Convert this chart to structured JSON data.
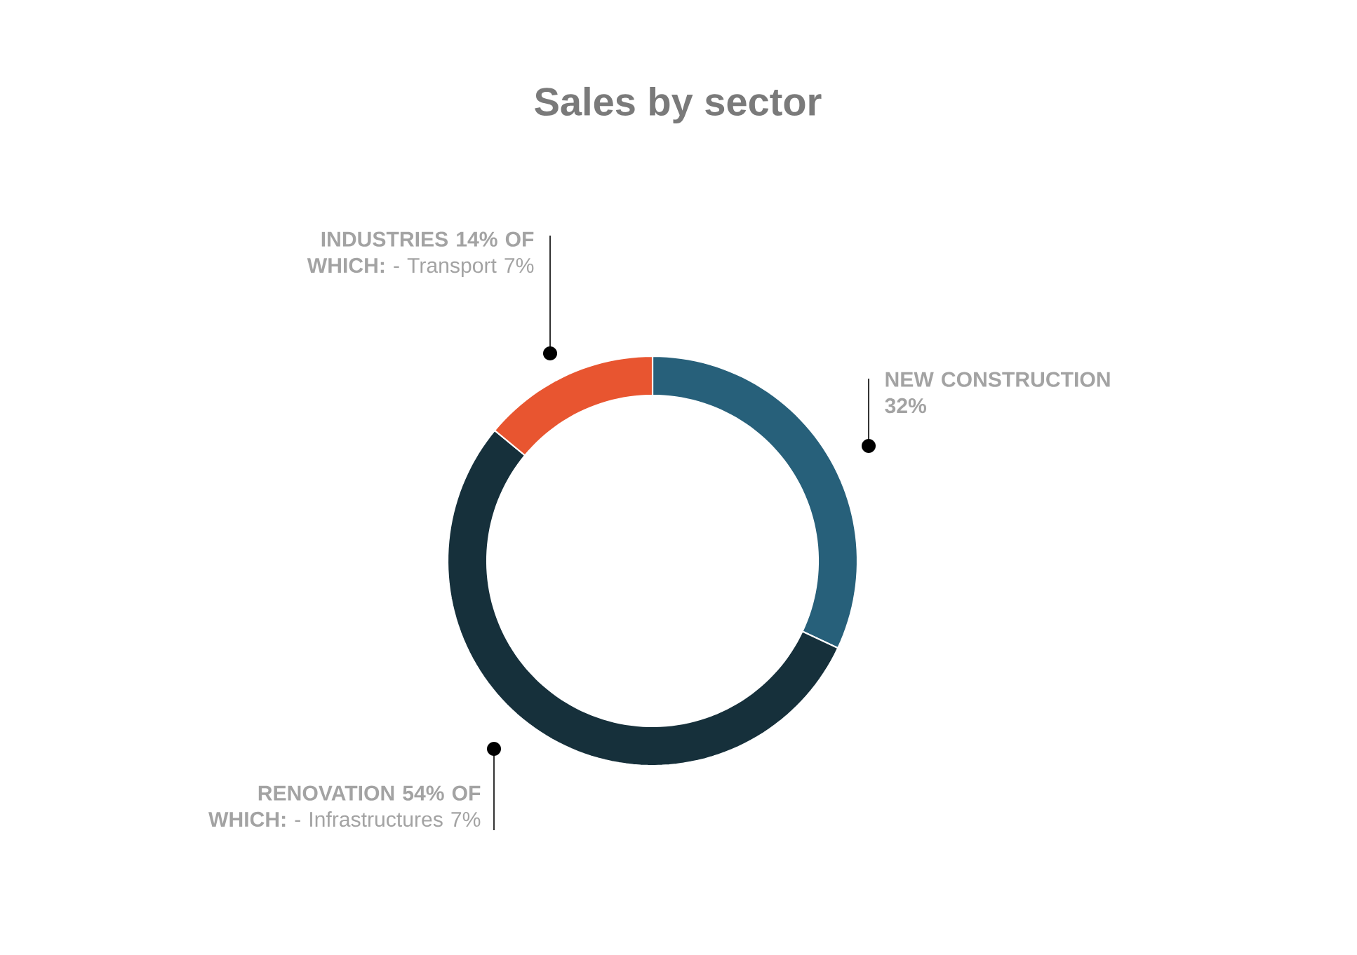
{
  "chart_data": {
    "type": "donut",
    "title": "Sales by sector",
    "categories": [
      "**NEW CONSTRUCTION  32%**",
      "**RENOVATION 54% OF WHICH:** - Infrastructures 7%",
      "**INDUSTRIES 14% OF WHICH:** - Transport 7%"
    ],
    "values": [
      32,
      54,
      14
    ],
    "colors": [
      "#27607a",
      "#16303b",
      "#e85530"
    ]
  }
}
